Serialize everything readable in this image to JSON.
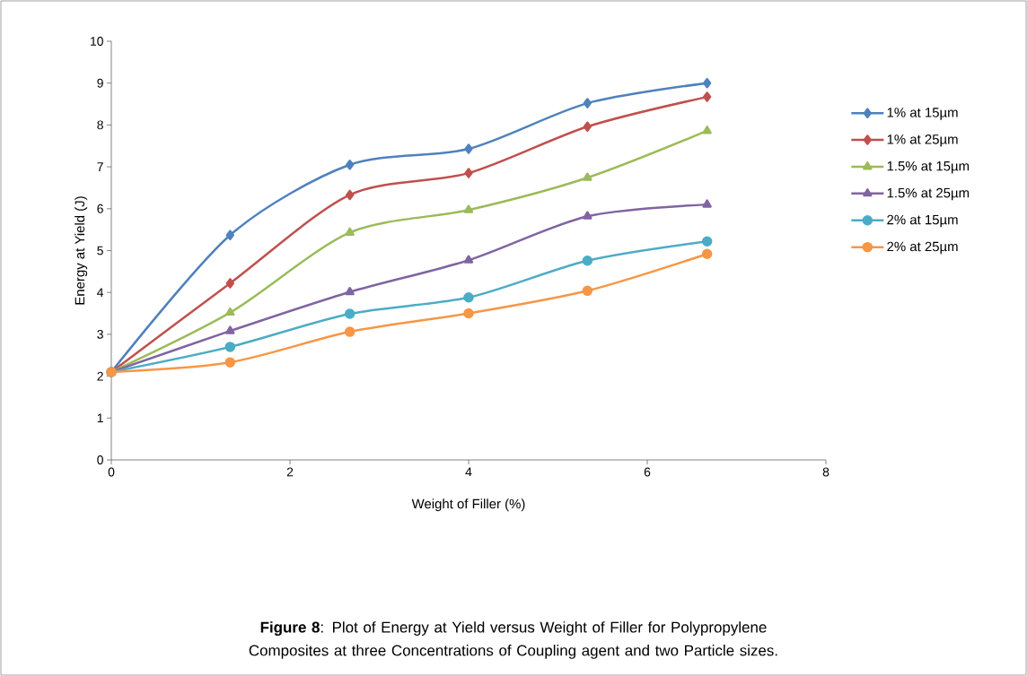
{
  "chart_data": {
    "type": "line",
    "xlabel": "Weight of Filler (%)",
    "ylabel": "Energy at Yield (J)",
    "x": [
      0,
      1.33,
      2.67,
      4,
      5.33,
      6.67
    ],
    "series": [
      {
        "name": "1% at 15µm",
        "color": "#4f81bd",
        "marker": "diamond",
        "values": [
          2.1,
          5.37,
          7.05,
          7.43,
          8.52,
          9.0
        ]
      },
      {
        "name": "1% at 25µm",
        "color": "#c0504d",
        "marker": "diamond",
        "values": [
          2.1,
          4.22,
          6.33,
          6.85,
          7.96,
          8.67
        ]
      },
      {
        "name": "1.5% at 15µm",
        "color": "#9bbb59",
        "marker": "triangle",
        "values": [
          2.1,
          3.52,
          5.43,
          5.97,
          6.74,
          7.86
        ]
      },
      {
        "name": "1.5% at 25µm",
        "color": "#8064a2",
        "marker": "triangle",
        "values": [
          2.1,
          3.08,
          4.01,
          4.77,
          5.82,
          6.1
        ]
      },
      {
        "name": "2% at 15µm",
        "color": "#4bacc6",
        "marker": "circle",
        "values": [
          2.1,
          2.7,
          3.49,
          3.88,
          4.76,
          5.22
        ]
      },
      {
        "name": "2% at 25µm",
        "color": "#f79646",
        "marker": "circle",
        "values": [
          2.1,
          2.33,
          3.06,
          3.5,
          4.04,
          4.92
        ]
      }
    ],
    "xlim": [
      0,
      8
    ],
    "xticks": [
      0,
      2,
      4,
      6,
      8
    ],
    "ylim": [
      0,
      10
    ],
    "yticks": [
      0,
      1,
      2,
      3,
      4,
      5,
      6,
      7,
      8,
      9,
      10
    ],
    "grid": false,
    "legend": "right",
    "line_style": "solid",
    "annotations": [
      "**Figure 8**: Plot of  Energy at Yield versus Weight of Filler for Polypropylene Composites at three Concentrations of Coupling agent and two Particle sizes."
    ]
  }
}
